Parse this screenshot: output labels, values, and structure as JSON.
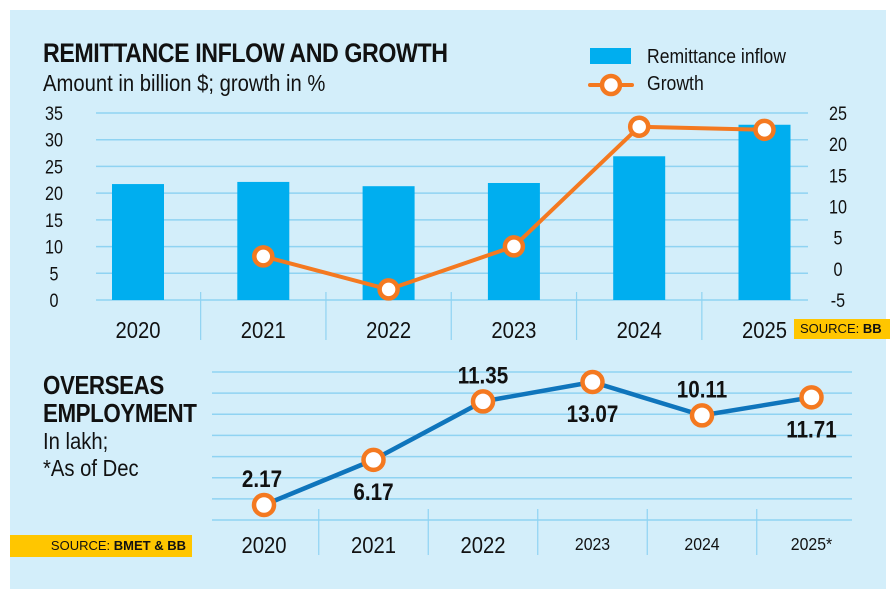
{
  "colors": {
    "background": "#d3eefa",
    "gridline": "#8fd3f2",
    "bar": "#00aeef",
    "growth_line": "#f47920",
    "employment_line": "#0f75bc",
    "marker_fill": "#ffffff",
    "source_bg": "#ffc600",
    "text": "#111111"
  },
  "top": {
    "title": "REMITTANCE INFLOW AND GROWTH",
    "subtitle": "Amount in billion $; growth in %",
    "legend": {
      "bar_label": "Remittance inflow",
      "line_label": "Growth"
    },
    "source_prefix": "SOURCE:",
    "source_name": "BB"
  },
  "bottom": {
    "title_line1": "OVERSEAS",
    "title_line2": "EMPLOYMENT",
    "subtitle_line1": "In lakh;",
    "subtitle_line2": "*As of Dec",
    "source_prefix": "SOURCE:",
    "source_name": "BMET & BB"
  },
  "chart_data": [
    {
      "type": "bar",
      "title": "REMITTANCE INFLOW AND GROWTH",
      "subtitle": "Amount in billion $; growth in %",
      "categories": [
        "2020",
        "2021",
        "2022",
        "2023",
        "2024",
        "2025"
      ],
      "series": [
        {
          "name": "Remittance inflow",
          "type": "bar",
          "axis": "left",
          "values": [
            21.7,
            22.1,
            21.3,
            21.9,
            26.9,
            32.8
          ]
        },
        {
          "name": "Growth",
          "type": "line",
          "axis": "right",
          "values": [
            null,
            2,
            -3.3,
            3.6,
            22.8,
            22.3
          ]
        }
      ],
      "left_axis": {
        "ylim": [
          0,
          35
        ],
        "ticks": [
          "0",
          "5",
          "10",
          "15",
          "20",
          "25",
          "30",
          "35"
        ]
      },
      "right_axis": {
        "ylim": [
          -5,
          25
        ],
        "ticks": [
          "-5",
          "0",
          "5",
          "10",
          "15",
          "20",
          "25"
        ]
      },
      "grid": true,
      "legend_position": "top-right",
      "source": "SOURCE: BB"
    },
    {
      "type": "line",
      "title": "OVERSEAS EMPLOYMENT",
      "subtitle": "In lakh; *As of Dec",
      "categories": [
        "2020",
        "2021",
        "2022",
        "2023",
        "2024",
        "2025*"
      ],
      "series": [
        {
          "name": "Overseas employment",
          "values": [
            2.17,
            6.17,
            11.35,
            13.07,
            10.11,
            11.71
          ]
        }
      ],
      "data_labels": [
        "2.17",
        "6.17",
        "11.35",
        "13.07",
        "10.11",
        "11.71"
      ],
      "label_positions": [
        "above",
        "below",
        "above",
        "below",
        "above",
        "below"
      ],
      "ylim": [
        0,
        14
      ],
      "grid": true,
      "source": "SOURCE: BMET & BB"
    }
  ]
}
